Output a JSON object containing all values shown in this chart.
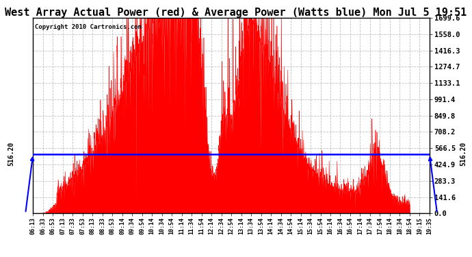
{
  "title": "West Array Actual Power (red) & Average Power (Watts blue) Mon Jul 5 19:51",
  "copyright": "Copyright 2010 Cartronics.com",
  "avg_power": 516.2,
  "ymax": 1699.6,
  "yticks": [
    0.0,
    141.6,
    283.3,
    424.9,
    566.5,
    708.2,
    849.8,
    991.4,
    1133.1,
    1274.7,
    1416.3,
    1558.0,
    1699.6
  ],
  "xtick_labels": [
    "06:13",
    "06:33",
    "06:53",
    "07:13",
    "07:33",
    "07:53",
    "08:13",
    "08:33",
    "08:53",
    "09:14",
    "09:34",
    "09:54",
    "10:14",
    "10:34",
    "10:54",
    "11:14",
    "11:34",
    "11:54",
    "12:14",
    "12:34",
    "12:54",
    "13:14",
    "13:34",
    "13:54",
    "14:14",
    "14:34",
    "14:54",
    "15:14",
    "15:34",
    "15:54",
    "16:14",
    "16:34",
    "16:54",
    "17:14",
    "17:34",
    "17:54",
    "18:14",
    "18:34",
    "18:54",
    "19:15",
    "19:35"
  ],
  "line_color": "blue",
  "fill_color": "red",
  "bg_color": "#ffffff",
  "grid_color": "#b0b0b0",
  "title_fontsize": 11,
  "avg_label": "516.20"
}
